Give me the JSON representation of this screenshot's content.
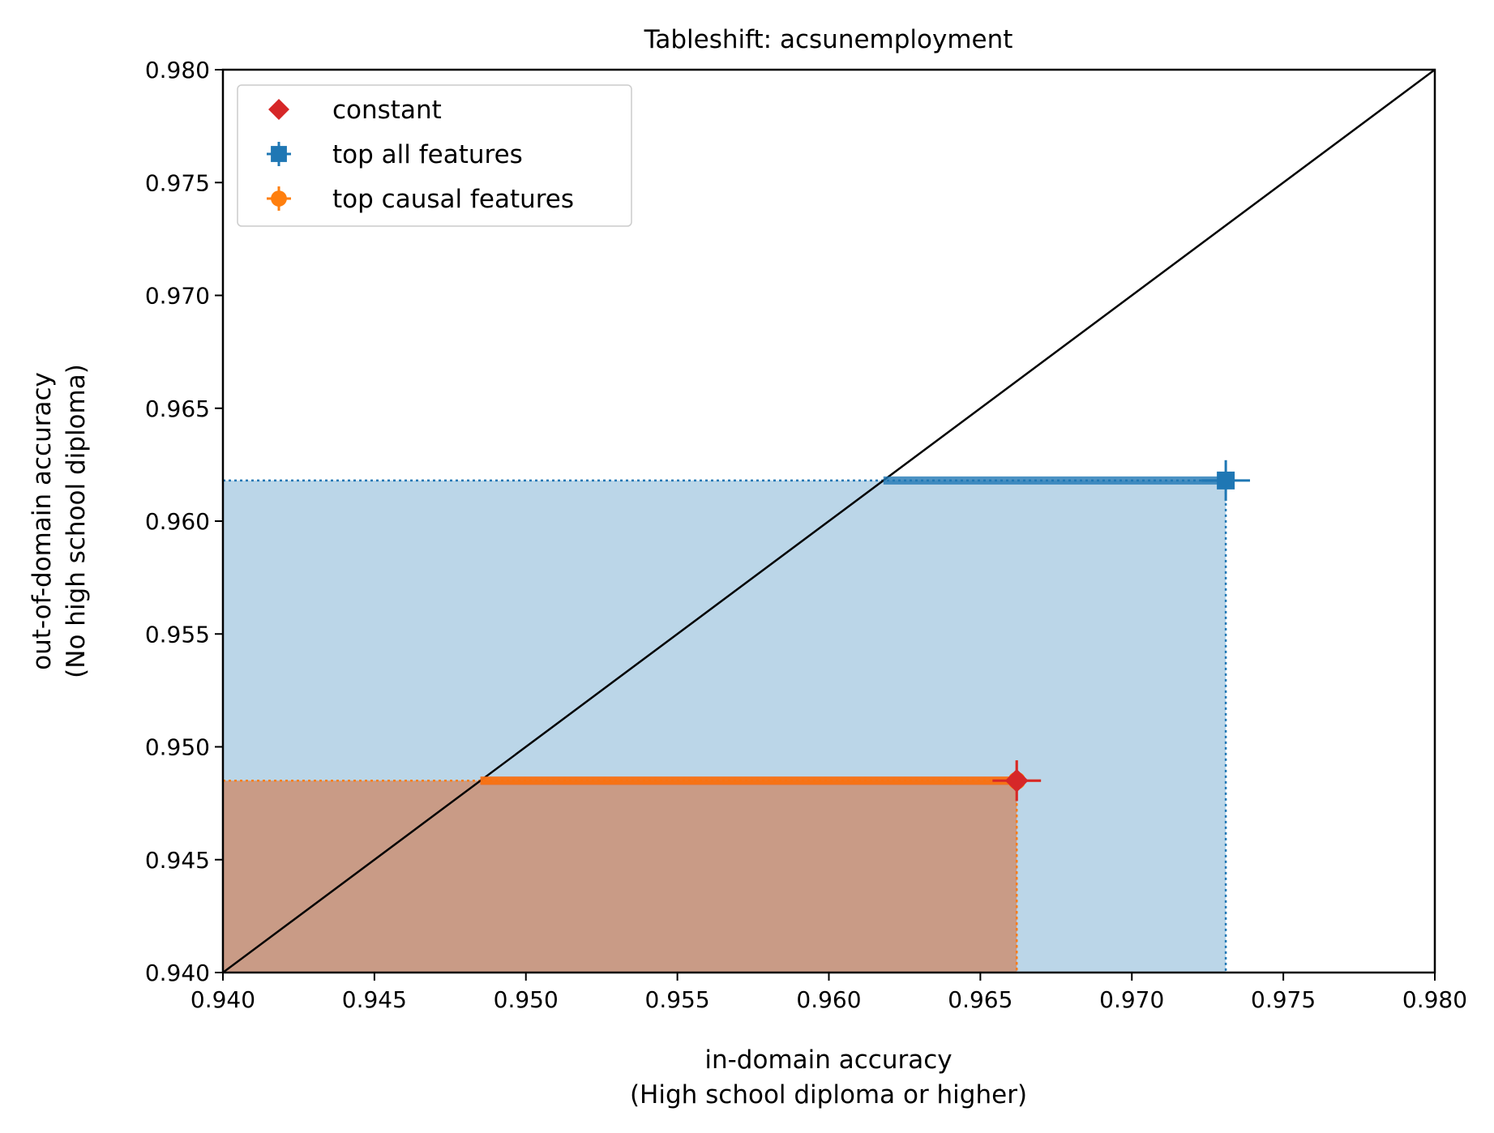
{
  "chart_data": {
    "type": "scatter",
    "title": "Tableshift: acsunemployment",
    "xlabel": [
      "in-domain accuracy",
      "(High school diploma or higher)"
    ],
    "ylabel": [
      "out-of-domain accuracy",
      "(No high school diploma)"
    ],
    "xlim": [
      0.94,
      0.98
    ],
    "ylim": [
      0.94,
      0.98
    ],
    "xticks": [
      "0.940",
      "0.945",
      "0.950",
      "0.955",
      "0.960",
      "0.965",
      "0.970",
      "0.975",
      "0.980"
    ],
    "yticks": [
      "0.940",
      "0.945",
      "0.950",
      "0.955",
      "0.960",
      "0.965",
      "0.970",
      "0.975",
      "0.980"
    ],
    "grid": false,
    "legend_position": "top-left",
    "diagonal": true,
    "series": [
      {
        "name": "constant",
        "marker": "diamond",
        "color": "#d62728",
        "x": 0.9662,
        "y": 0.9485,
        "xerr": 0.0008,
        "yerr": 0.0009,
        "region": true
      },
      {
        "name": "top all features",
        "marker": "square",
        "color": "#1f77b4",
        "x": 0.9731,
        "y": 0.9618,
        "xerr": 0.0008,
        "yerr": 0.0009,
        "region": true
      },
      {
        "name": "top causal features",
        "marker": "circle",
        "color": "#ff7f0e",
        "x": 0.9662,
        "y": 0.9485,
        "xerr": 0.0008,
        "yerr": 0.0009,
        "region": true
      }
    ]
  }
}
